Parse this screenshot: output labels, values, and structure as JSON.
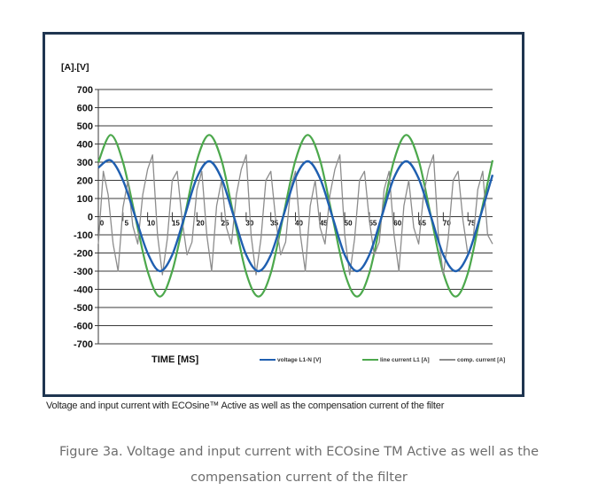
{
  "figure": {
    "inner_caption": "Voltage and input current with ECOsine™ Active as well as the compensation current of the filter",
    "caption_line1": "Figure 3a. Voltage and input current with ECOsine TM Active as well as the",
    "caption_line2": "compensation current of the filter",
    "frame_color": "#1f3550"
  },
  "chart_data": {
    "type": "line",
    "ylabel": "[A].[V]",
    "xlabel": "TIME [MS]",
    "ylim": [
      -700,
      700
    ],
    "y_ticks": [
      "700",
      "600",
      "500",
      "400",
      "300",
      "200",
      "100",
      "0",
      "-100",
      "-200",
      "-300",
      "-400",
      "-500",
      "-600",
      "-700"
    ],
    "xlim": [
      0,
      80
    ],
    "x_ticks": [
      "0",
      "5",
      "10",
      "15",
      "20",
      "25",
      "30",
      "35",
      "40",
      "45",
      "50",
      "55",
      "60",
      "65",
      "70",
      "75"
    ],
    "grid": true,
    "legend_position": "bottom-right",
    "series": [
      {
        "name": "voltage L1-N [V]",
        "color": "#1f5fb0",
        "x": [
          0,
          2.5,
          5,
          7.5,
          10,
          12.5,
          15,
          17.5,
          20,
          22.5,
          25,
          27.5,
          30,
          32.5,
          35,
          37.5,
          40,
          42.5,
          45,
          47.5,
          50,
          52.5,
          55,
          57.5,
          60,
          62.5,
          65,
          67.5,
          70,
          72.5,
          75,
          77.5,
          80
        ],
        "y": [
          270,
          310,
          200,
          0,
          -200,
          -300,
          -210,
          0,
          215,
          305,
          210,
          0,
          -210,
          -300,
          -210,
          0,
          215,
          305,
          210,
          0,
          -210,
          -300,
          -210,
          0,
          215,
          305,
          210,
          0,
          -210,
          -300,
          -210,
          0,
          230
        ]
      },
      {
        "name": "line current L1 [A]",
        "color": "#4ca84c",
        "x": [
          0,
          2.5,
          5,
          7.5,
          10,
          12.5,
          15,
          17.5,
          20,
          22.5,
          25,
          27.5,
          30,
          32.5,
          35,
          37.5,
          40,
          42.5,
          45,
          47.5,
          50,
          52.5,
          55,
          57.5,
          60,
          62.5,
          65,
          67.5,
          70,
          72.5,
          75,
          77.5,
          80
        ],
        "y": [
          300,
          450,
          300,
          0,
          -300,
          -440,
          -300,
          0,
          310,
          450,
          310,
          0,
          -310,
          -440,
          -310,
          0,
          310,
          450,
          310,
          0,
          -310,
          -440,
          -310,
          0,
          310,
          450,
          310,
          0,
          -310,
          -440,
          -310,
          0,
          310
        ]
      },
      {
        "name": "comp. current [A]",
        "color": "#8c8c8c",
        "x": [
          0,
          1,
          2,
          3,
          4,
          5,
          6,
          7,
          8,
          9,
          10,
          11,
          12,
          13,
          14,
          15,
          16,
          17,
          18,
          19,
          20,
          21,
          22,
          23,
          24,
          25,
          26,
          27,
          28,
          29,
          30,
          31,
          32,
          33,
          34,
          35,
          36,
          37,
          38,
          39,
          40,
          41,
          42,
          43,
          44,
          45,
          46,
          47,
          48,
          49,
          50,
          51,
          52,
          53,
          54,
          55,
          56,
          57,
          58,
          59,
          60,
          61,
          62,
          63,
          64,
          65,
          66,
          67,
          68,
          69,
          70,
          71,
          72,
          73,
          74,
          75,
          76,
          77,
          78,
          79,
          80
        ],
        "y": [
          -150,
          250,
          120,
          -150,
          -300,
          50,
          200,
          -50,
          -150,
          120,
          260,
          340,
          -100,
          -320,
          -120,
          200,
          250,
          -20,
          -210,
          -140,
          150,
          250,
          -100,
          -300,
          60,
          200,
          -60,
          -150,
          120,
          260,
          340,
          -100,
          -320,
          -120,
          200,
          250,
          -20,
          -210,
          -140,
          150,
          250,
          -100,
          -300,
          60,
          200,
          -60,
          -150,
          120,
          260,
          340,
          -100,
          -320,
          -120,
          200,
          250,
          -20,
          -210,
          -140,
          150,
          250,
          -100,
          -300,
          60,
          200,
          -60,
          -150,
          120,
          260,
          340,
          -100,
          -320,
          -120,
          200,
          250,
          -20,
          -210,
          -140,
          150,
          250,
          -100,
          -150
        ]
      }
    ]
  }
}
